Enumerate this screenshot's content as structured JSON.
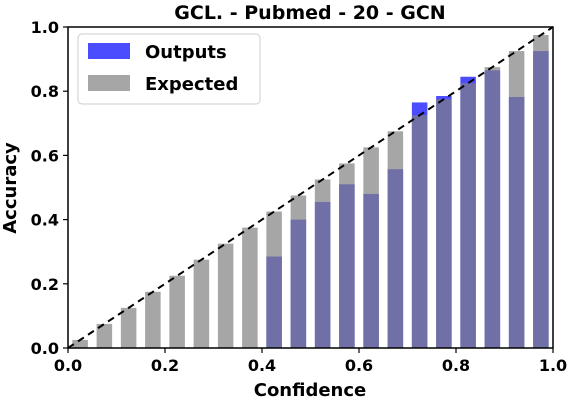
{
  "chart_data": {
    "type": "bar",
    "title": "GCL. - Pubmed - 20 - GCN",
    "xlabel": "Confidence",
    "ylabel": "Accuracy",
    "xlim": [
      0.0,
      1.0
    ],
    "ylim": [
      0.0,
      1.0
    ],
    "x_ticks": [
      "0.0",
      "0.2",
      "0.4",
      "0.6",
      "0.8",
      "1.0"
    ],
    "y_ticks": [
      "0.0",
      "0.2",
      "0.4",
      "0.6",
      "0.8",
      "1.0"
    ],
    "bin_width": 0.05,
    "bin_centers": [
      0.025,
      0.075,
      0.125,
      0.175,
      0.225,
      0.275,
      0.325,
      0.375,
      0.425,
      0.475,
      0.525,
      0.575,
      0.625,
      0.675,
      0.725,
      0.775,
      0.825,
      0.875,
      0.925,
      0.975
    ],
    "grid": false,
    "legend_position": "top-left",
    "diagonal": "dashed",
    "series": [
      {
        "name": "Outputs",
        "color": "#0000ff",
        "alpha": 0.7,
        "values": [
          null,
          null,
          null,
          null,
          null,
          null,
          null,
          null,
          0.285,
          0.4,
          0.455,
          0.51,
          0.48,
          0.557,
          0.765,
          0.785,
          0.845,
          0.865,
          0.782,
          0.925
        ]
      },
      {
        "name": "Expected",
        "color": "#808080",
        "alpha": 0.7,
        "values": [
          0.025,
          0.075,
          0.125,
          0.175,
          0.225,
          0.275,
          0.325,
          0.375,
          0.425,
          0.475,
          0.525,
          0.575,
          0.625,
          0.675,
          0.725,
          0.775,
          0.825,
          0.875,
          0.925,
          0.975
        ]
      }
    ]
  }
}
